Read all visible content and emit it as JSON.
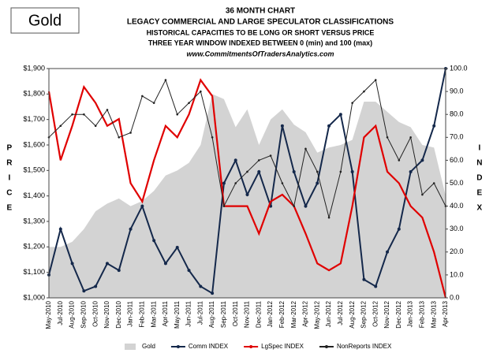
{
  "chart_data": {
    "type": "line",
    "badge": "Gold",
    "title": "36 MONTH CHART",
    "subtitles": [
      "LEGACY COMMERCIAL AND LARGE SPECULATOR CLASSIFICATIONS",
      "HISTORICAL CAPACITIES TO BE LONG OR SHORT VERSUS PRICE",
      "THREE YEAR WINDOW INDEXED BETWEEN  0 (min) and 100 (max)"
    ],
    "website": "www.CommitmentsOfTradersAnalytics.com",
    "y_label": "PRICE",
    "y2_label": "INDEX",
    "categories": [
      "May-2010",
      "Jul-2010",
      "Aug-2010",
      "Sep-2010",
      "Oct-2010",
      "Nov-2010",
      "Dec-2010",
      "Jan-2011",
      "Feb-2011",
      "Mar-2011",
      "Apr-2011",
      "May-2011",
      "Jun-2011",
      "Jul-2011",
      "Aug-2011",
      "Sep-2011",
      "Oct-2011",
      "Nov-2011",
      "Dec-2011",
      "Jan-2012",
      "Feb-2012",
      "Mar-2012",
      "Apr-2012",
      "May-2012",
      "Jun-2012",
      "Jul-2012",
      "Aug-2012",
      "Sep-2012",
      "Oct-2012",
      "Nov-2012",
      "Dec-2012",
      "Jan-2013",
      "Feb-2013",
      "Mar-2013",
      "Apr-2013"
    ],
    "series": [
      {
        "name": "Gold",
        "color": "#d3d3d3",
        "kind": "area",
        "values": [
          1200,
          1200,
          1220,
          1270,
          1340,
          1370,
          1390,
          1360,
          1380,
          1420,
          1480,
          1500,
          1530,
          1600,
          1800,
          1780,
          1670,
          1740,
          1600,
          1700,
          1740,
          1680,
          1650,
          1570,
          1590,
          1600,
          1620,
          1770,
          1770,
          1730,
          1690,
          1670,
          1600,
          1590,
          1400
        ]
      },
      {
        "name": "Comm INDEX",
        "color": "#14284b",
        "axis": "y2",
        "values": [
          10,
          30,
          15,
          3,
          5,
          15,
          12,
          30,
          40,
          25,
          15,
          22,
          12,
          5,
          2,
          50,
          60,
          45,
          55,
          40,
          75,
          55,
          40,
          50,
          75,
          80,
          55,
          8,
          5,
          20,
          30,
          55,
          60,
          75,
          100
        ]
      },
      {
        "name": "LgSpec INDEX",
        "color": "#e00000",
        "axis": "y2",
        "values": [
          90,
          60,
          75,
          92,
          85,
          75,
          78,
          50,
          42,
          60,
          75,
          70,
          80,
          95,
          88,
          40,
          40,
          40,
          28,
          42,
          45,
          40,
          28,
          15,
          12,
          15,
          40,
          70,
          75,
          55,
          50,
          40,
          35,
          20,
          0
        ]
      },
      {
        "name": "NonReports INDEX",
        "color": "#222222",
        "axis": "y2",
        "values": [
          70,
          75,
          80,
          80,
          75,
          82,
          70,
          72,
          88,
          85,
          95,
          80,
          85,
          90,
          70,
          40,
          50,
          55,
          60,
          62,
          50,
          40,
          65,
          55,
          35,
          55,
          85,
          90,
          95,
          70,
          60,
          70,
          45,
          50,
          40
        ]
      }
    ],
    "ylim": [
      1000,
      1900
    ],
    "yticks": [
      {
        "value": 1000,
        "label": "$1,000"
      },
      {
        "value": 1100,
        "label": "$1,100"
      },
      {
        "value": 1200,
        "label": "$1,200"
      },
      {
        "value": 1300,
        "label": "$1,300"
      },
      {
        "value": 1400,
        "label": "$1,400"
      },
      {
        "value": 1500,
        "label": "$1,500"
      },
      {
        "value": 1600,
        "label": "$1,600"
      },
      {
        "value": 1700,
        "label": "$1,700"
      },
      {
        "value": 1800,
        "label": "$1,800"
      },
      {
        "value": 1900,
        "label": "$1,900"
      }
    ],
    "y2lim": [
      0,
      100
    ],
    "y2ticks": [
      {
        "value": 0,
        "label": "0.0"
      },
      {
        "value": 10,
        "label": "10.0"
      },
      {
        "value": 20,
        "label": "20.0"
      },
      {
        "value": 30,
        "label": "30.0"
      },
      {
        "value": 40,
        "label": "40.0"
      },
      {
        "value": 50,
        "label": "50.0"
      },
      {
        "value": 60,
        "label": "60.0"
      },
      {
        "value": 70,
        "label": "70.0"
      },
      {
        "value": 80,
        "label": "80.0"
      },
      {
        "value": 90,
        "label": "90.0"
      },
      {
        "value": 100,
        "label": "100.0"
      }
    ]
  }
}
